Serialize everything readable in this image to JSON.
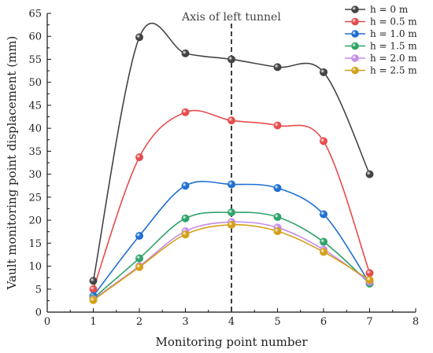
{
  "chart_data": {
    "type": "line",
    "title": "",
    "xlabel": "Monitoring point number",
    "ylabel": "Vault monitoring point displacement (mm)",
    "xlim": [
      0,
      8
    ],
    "ylim": [
      0,
      65
    ],
    "xticks": [
      0,
      1,
      2,
      3,
      4,
      5,
      6,
      7,
      8
    ],
    "yticks": [
      0,
      5,
      10,
      15,
      20,
      25,
      30,
      35,
      40,
      45,
      50,
      55,
      60,
      65
    ],
    "grid": false,
    "legend_position": "top-right",
    "annotation": {
      "text": "Axis of left tunnel",
      "x": 4
    },
    "x": [
      1,
      2,
      3,
      4,
      5,
      6,
      7
    ],
    "series": [
      {
        "name": "h = 0 m",
        "color": "#444444",
        "values": [
          6.8,
          59.8,
          56.3,
          55.0,
          53.3,
          52.2,
          30.0
        ]
      },
      {
        "name": "h = 0.5 m",
        "color": "#e74c4c",
        "values": [
          5.0,
          33.7,
          43.5,
          41.7,
          40.6,
          37.2,
          8.5
        ]
      },
      {
        "name": "h = 1.0 m",
        "color": "#1f6fd1",
        "values": [
          3.5,
          16.6,
          27.5,
          27.8,
          27.0,
          21.3,
          6.3
        ]
      },
      {
        "name": "h = 1.5 m",
        "color": "#2ea36a",
        "values": [
          3.0,
          11.7,
          20.4,
          21.7,
          20.7,
          15.3,
          6.2
        ]
      },
      {
        "name": "h = 2.0 m",
        "color": "#c58be8",
        "values": [
          2.8,
          10.0,
          17.6,
          19.6,
          18.4,
          13.6,
          6.6
        ]
      },
      {
        "name": "h = 2.5 m",
        "color": "#d4a017",
        "values": [
          2.6,
          9.8,
          16.9,
          19.0,
          17.6,
          13.1,
          7.0
        ]
      }
    ]
  }
}
